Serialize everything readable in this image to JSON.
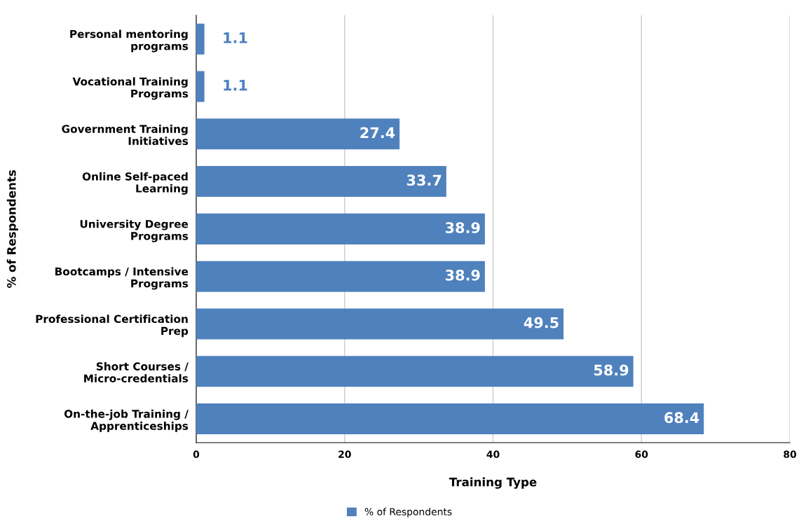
{
  "chart_data": {
    "type": "bar",
    "orientation": "horizontal",
    "xlabel": "Training Type",
    "ylabel": "% of Respondents",
    "categories": [
      "Personal mentoring\nprograms",
      "Vocational Training\nPrograms",
      "Government Training\nInitiatives",
      "Online Self-paced\nLearning",
      "University Degree\nPrograms",
      "Bootcamps / Intensive\nPrograms",
      "Professional Certification\nPrep",
      "Short Courses /\nMicro-credentials",
      "On-the-job Training /\nApprenticeships"
    ],
    "series": [
      {
        "name": "% of Respondents",
        "color": "#4f81bd",
        "values": [
          1.1,
          1.1,
          27.4,
          33.7,
          38.9,
          38.9,
          49.5,
          58.9,
          68.4
        ]
      }
    ],
    "xlim": [
      0,
      80
    ],
    "xticks": [
      0,
      20,
      40,
      60,
      80
    ],
    "grid": "x",
    "legend": "bottom",
    "data_labels": true
  }
}
